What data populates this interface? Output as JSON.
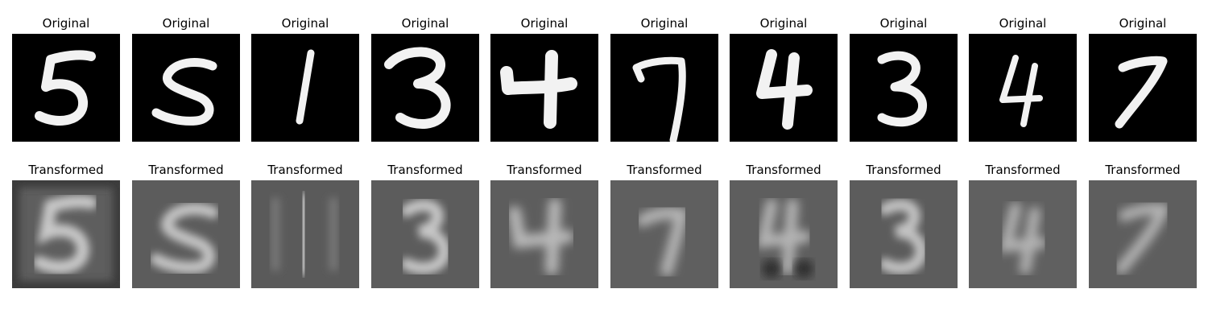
{
  "figure": {
    "original_label": "Original",
    "transformed_label": "Transformed",
    "digits": [
      "5",
      "5",
      "1",
      "3",
      "4",
      "7",
      "4",
      "3",
      "4",
      "7"
    ]
  }
}
